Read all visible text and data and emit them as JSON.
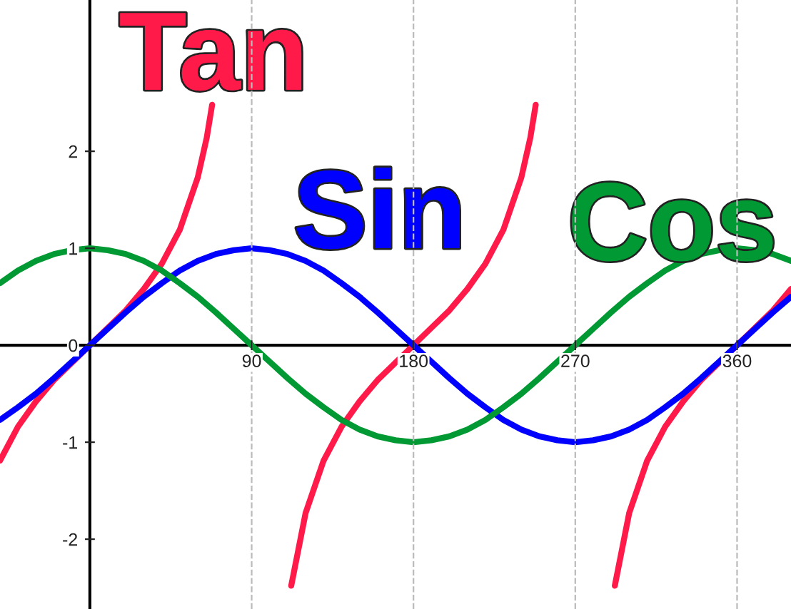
{
  "chart_data": {
    "type": "line",
    "xlim": [
      -50,
      390
    ],
    "ylim": [
      -2.72,
      3.56
    ],
    "xticks": [
      90,
      180,
      270,
      360
    ],
    "yticks": [
      -2,
      -1,
      0,
      1,
      2
    ],
    "grid": "x",
    "marker": "none",
    "line_style": "solid",
    "series": [
      {
        "name": "Tan",
        "color": "#ff1a4a",
        "x": [
          -50,
          -40,
          -30,
          -20,
          -10,
          0,
          10,
          20,
          30,
          40,
          50,
          60,
          65,
          68,
          90,
          112,
          120,
          130,
          140,
          150,
          160,
          170,
          180,
          190,
          200,
          210,
          220,
          230,
          240,
          245,
          248,
          270,
          292,
          300,
          310,
          320,
          330,
          340,
          350,
          360,
          370,
          380,
          390
        ],
        "values": [
          -1.19,
          -0.84,
          -0.58,
          -0.36,
          -0.18,
          0,
          0.18,
          0.36,
          0.58,
          0.84,
          1.19,
          1.73,
          2.14,
          2.48,
          null,
          -2.48,
          -1.73,
          -1.19,
          -0.84,
          -0.58,
          -0.36,
          -0.18,
          0,
          0.18,
          0.36,
          0.58,
          0.84,
          1.19,
          1.73,
          2.14,
          2.48,
          null,
          -2.48,
          -1.73,
          -1.19,
          -0.84,
          -0.58,
          -0.36,
          -0.18,
          0,
          0.18,
          0.36,
          0.58
        ]
      },
      {
        "name": "Sin",
        "color": "#0000ff",
        "x": [
          -50,
          -40,
          -30,
          -20,
          -10,
          0,
          10,
          20,
          30,
          40,
          50,
          60,
          70,
          80,
          90,
          100,
          110,
          120,
          130,
          140,
          150,
          160,
          170,
          180,
          190,
          200,
          210,
          220,
          230,
          240,
          250,
          260,
          270,
          280,
          290,
          300,
          310,
          320,
          330,
          340,
          350,
          360,
          370,
          380,
          390
        ],
        "values": [
          -0.77,
          -0.64,
          -0.5,
          -0.34,
          -0.17,
          0,
          0.17,
          0.34,
          0.5,
          0.64,
          0.77,
          0.87,
          0.94,
          0.98,
          1,
          0.98,
          0.94,
          0.87,
          0.77,
          0.64,
          0.5,
          0.34,
          0.17,
          0,
          -0.17,
          -0.34,
          -0.5,
          -0.64,
          -0.77,
          -0.87,
          -0.94,
          -0.98,
          -1,
          -0.98,
          -0.94,
          -0.87,
          -0.77,
          -0.64,
          -0.5,
          -0.34,
          -0.17,
          0,
          0.17,
          0.34,
          0.5
        ]
      },
      {
        "name": "Cos",
        "color": "#009933",
        "x": [
          -50,
          -40,
          -30,
          -20,
          -10,
          0,
          10,
          20,
          30,
          40,
          50,
          60,
          70,
          80,
          90,
          100,
          110,
          120,
          130,
          140,
          150,
          160,
          170,
          180,
          190,
          200,
          210,
          220,
          230,
          240,
          250,
          260,
          270,
          280,
          290,
          300,
          310,
          320,
          330,
          340,
          350,
          360,
          370,
          380,
          390
        ],
        "values": [
          0.64,
          0.77,
          0.87,
          0.94,
          0.98,
          1,
          0.98,
          0.94,
          0.87,
          0.77,
          0.64,
          0.5,
          0.34,
          0.17,
          0,
          -0.17,
          -0.34,
          -0.5,
          -0.64,
          -0.77,
          -0.87,
          -0.94,
          -0.98,
          -1,
          -0.98,
          -0.94,
          -0.87,
          -0.77,
          -0.64,
          -0.5,
          -0.34,
          -0.17,
          0,
          0.17,
          0.34,
          0.5,
          0.64,
          0.77,
          0.87,
          0.94,
          0.98,
          1,
          0.98,
          0.94,
          0.87
        ]
      }
    ]
  }
}
